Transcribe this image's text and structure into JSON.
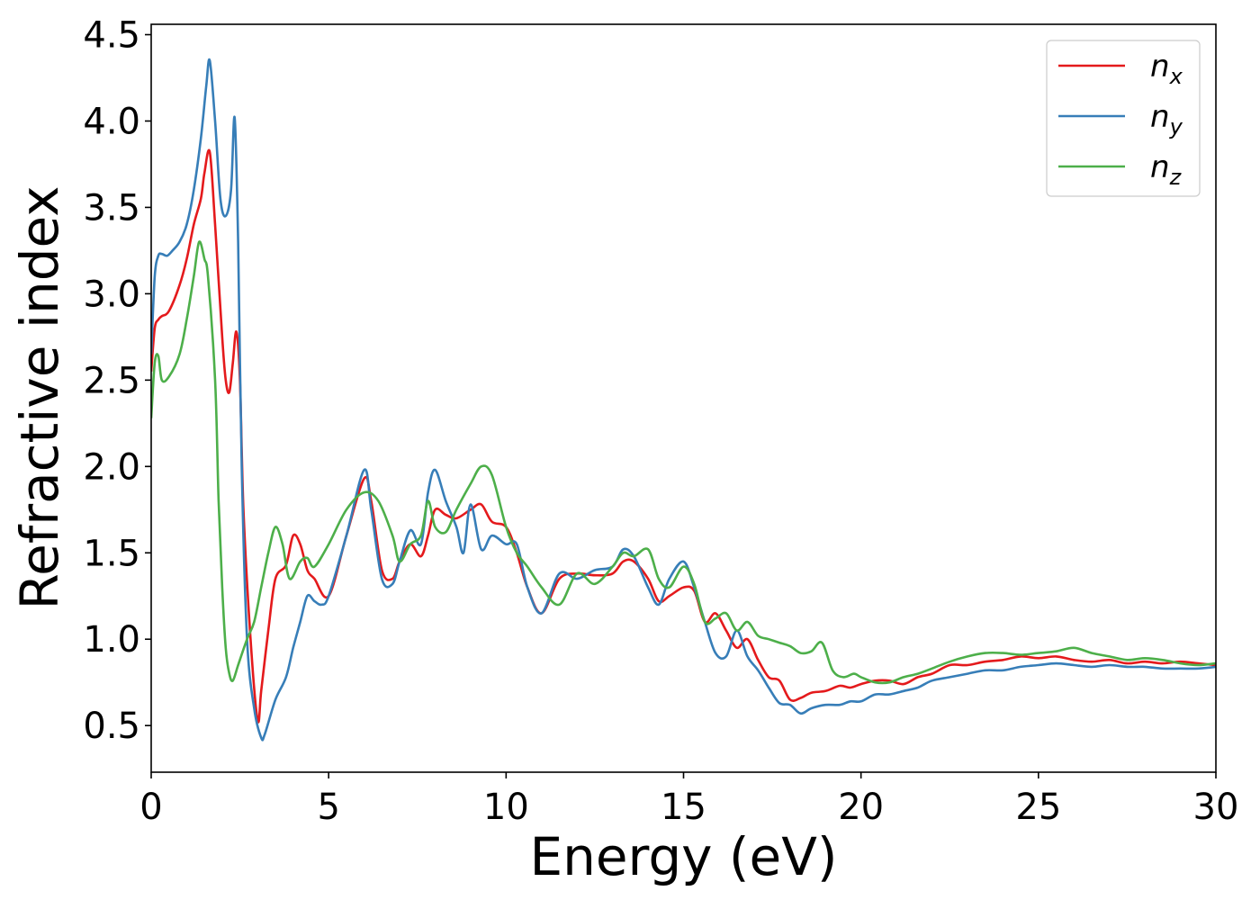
{
  "chart_data": {
    "type": "line",
    "title": "",
    "xlabel": "Energy (eV)",
    "ylabel": "Refractive index",
    "xlim": [
      0,
      30
    ],
    "ylim": [
      0.23,
      4.56
    ],
    "xticks": [
      0,
      5,
      10,
      15,
      20,
      25,
      30
    ],
    "xtick_labels": [
      "0",
      "5",
      "10",
      "15",
      "20",
      "25",
      "30"
    ],
    "yticks": [
      0.5,
      1.0,
      1.5,
      2.0,
      2.5,
      3.0,
      3.5,
      4.0,
      4.5
    ],
    "ytick_labels": [
      "0.5",
      "1.0",
      "1.5",
      "2.0",
      "2.5",
      "3.0",
      "3.5",
      "4.0",
      "4.5"
    ],
    "grid": false,
    "legend_position": "top-right",
    "series": [
      {
        "name": "n",
        "subscript": "x",
        "color": "#e41a1c",
        "x": [
          0,
          0.1,
          0.2,
          0.3,
          0.5,
          0.8,
          1.0,
          1.2,
          1.4,
          1.5,
          1.65,
          1.8,
          2.0,
          2.1,
          2.2,
          2.3,
          2.4,
          2.5,
          2.6,
          2.8,
          3.0,
          3.1,
          3.3,
          3.5,
          3.8,
          4.0,
          4.2,
          4.4,
          4.6,
          5.0,
          5.5,
          6.0,
          6.2,
          6.5,
          6.8,
          7.0,
          7.3,
          7.6,
          7.8,
          8.0,
          8.3,
          8.6,
          9.0,
          9.3,
          9.6,
          10.0,
          10.3,
          10.6,
          11.0,
          11.5,
          12.0,
          12.5,
          13.0,
          13.3,
          13.6,
          14.0,
          14.3,
          14.6,
          15.0,
          15.3,
          15.6,
          15.9,
          16.2,
          16.5,
          16.8,
          17.1,
          17.4,
          17.7,
          18.0,
          18.3,
          18.6,
          19.0,
          19.4,
          19.7,
          20.0,
          20.4,
          20.8,
          21.2,
          21.6,
          22.0,
          22.5,
          23.0,
          23.5,
          24.0,
          24.5,
          25.0,
          25.5,
          26.0,
          26.5,
          27.0,
          27.5,
          28.0,
          28.5,
          29.0,
          29.5,
          30.0
        ],
        "y": [
          2.55,
          2.8,
          2.85,
          2.87,
          2.9,
          3.05,
          3.2,
          3.4,
          3.55,
          3.7,
          3.82,
          3.4,
          2.75,
          2.5,
          2.43,
          2.6,
          2.78,
          2.5,
          1.75,
          1.0,
          0.53,
          0.7,
          1.05,
          1.35,
          1.43,
          1.6,
          1.55,
          1.4,
          1.35,
          1.25,
          1.6,
          1.93,
          1.8,
          1.4,
          1.35,
          1.45,
          1.55,
          1.48,
          1.6,
          1.75,
          1.72,
          1.7,
          1.75,
          1.78,
          1.68,
          1.65,
          1.5,
          1.3,
          1.15,
          1.35,
          1.38,
          1.37,
          1.38,
          1.45,
          1.45,
          1.35,
          1.22,
          1.25,
          1.3,
          1.28,
          1.1,
          1.15,
          1.05,
          0.95,
          1.0,
          0.88,
          0.78,
          0.76,
          0.65,
          0.66,
          0.69,
          0.7,
          0.73,
          0.72,
          0.74,
          0.76,
          0.76,
          0.74,
          0.78,
          0.8,
          0.85,
          0.85,
          0.87,
          0.88,
          0.9,
          0.89,
          0.9,
          0.88,
          0.87,
          0.88,
          0.86,
          0.87,
          0.86,
          0.87,
          0.86,
          0.85
        ]
      },
      {
        "name": "n",
        "subscript": "y",
        "color": "#377eb8",
        "x": [
          0,
          0.1,
          0.2,
          0.3,
          0.45,
          0.6,
          0.8,
          1.0,
          1.2,
          1.4,
          1.55,
          1.65,
          1.8,
          1.95,
          2.1,
          2.25,
          2.35,
          2.45,
          2.55,
          2.7,
          2.9,
          3.1,
          3.2,
          3.5,
          3.8,
          4.0,
          4.2,
          4.4,
          4.6,
          4.8,
          5.0,
          5.5,
          6.0,
          6.2,
          6.5,
          6.8,
          7.0,
          7.3,
          7.6,
          7.8,
          8.0,
          8.3,
          8.6,
          8.8,
          9.0,
          9.3,
          9.6,
          10.0,
          10.3,
          10.6,
          11.0,
          11.5,
          12.0,
          12.5,
          13.0,
          13.3,
          13.6,
          14.0,
          14.3,
          14.6,
          15.0,
          15.3,
          15.6,
          15.9,
          16.2,
          16.5,
          16.8,
          17.1,
          17.4,
          17.7,
          18.0,
          18.3,
          18.6,
          19.0,
          19.4,
          19.7,
          20.0,
          20.4,
          20.8,
          21.2,
          21.6,
          22.0,
          22.5,
          23.0,
          23.5,
          24.0,
          24.5,
          25.0,
          25.5,
          26.0,
          26.5,
          27.0,
          27.5,
          28.0,
          28.5,
          29.0,
          29.5,
          30.0
        ],
        "y": [
          2.65,
          3.1,
          3.22,
          3.23,
          3.22,
          3.25,
          3.3,
          3.4,
          3.6,
          3.9,
          4.2,
          4.35,
          4.0,
          3.55,
          3.45,
          3.6,
          4.02,
          3.3,
          2.0,
          1.0,
          0.6,
          0.43,
          0.45,
          0.65,
          0.78,
          0.95,
          1.1,
          1.25,
          1.22,
          1.2,
          1.25,
          1.6,
          1.98,
          1.75,
          1.35,
          1.32,
          1.45,
          1.63,
          1.55,
          1.85,
          1.98,
          1.8,
          1.65,
          1.5,
          1.78,
          1.52,
          1.6,
          1.55,
          1.55,
          1.3,
          1.15,
          1.38,
          1.35,
          1.4,
          1.42,
          1.52,
          1.48,
          1.3,
          1.2,
          1.35,
          1.45,
          1.3,
          1.1,
          0.92,
          0.9,
          1.05,
          0.9,
          0.82,
          0.72,
          0.63,
          0.62,
          0.57,
          0.6,
          0.62,
          0.62,
          0.64,
          0.64,
          0.68,
          0.68,
          0.7,
          0.72,
          0.76,
          0.78,
          0.8,
          0.82,
          0.82,
          0.84,
          0.85,
          0.86,
          0.85,
          0.84,
          0.85,
          0.84,
          0.84,
          0.83,
          0.83,
          0.83,
          0.84
        ]
      },
      {
        "name": "n",
        "subscript": "z",
        "color": "#4daf4a",
        "x": [
          0,
          0.1,
          0.2,
          0.3,
          0.5,
          0.8,
          1.0,
          1.2,
          1.35,
          1.5,
          1.6,
          1.8,
          1.9,
          2.0,
          2.1,
          2.2,
          2.3,
          2.45,
          2.7,
          2.9,
          3.1,
          3.3,
          3.5,
          3.7,
          3.9,
          4.2,
          4.4,
          4.6,
          5.0,
          5.5,
          6.0,
          6.4,
          6.8,
          7.0,
          7.3,
          7.6,
          7.8,
          8.0,
          8.3,
          8.6,
          9.0,
          9.3,
          9.6,
          10.0,
          10.3,
          10.6,
          11.0,
          11.5,
          12.0,
          12.5,
          13.0,
          13.3,
          13.6,
          14.0,
          14.3,
          14.6,
          15.0,
          15.3,
          15.6,
          15.9,
          16.2,
          16.5,
          16.8,
          17.1,
          17.4,
          17.7,
          18.0,
          18.3,
          18.6,
          18.9,
          19.2,
          19.5,
          19.8,
          20.0,
          20.4,
          20.8,
          21.2,
          21.6,
          22.0,
          22.5,
          23.0,
          23.5,
          24.0,
          24.5,
          25.0,
          25.5,
          26.0,
          26.5,
          27.0,
          27.5,
          28.0,
          28.5,
          29.0,
          29.5,
          30.0
        ],
        "y": [
          2.28,
          2.6,
          2.64,
          2.5,
          2.52,
          2.65,
          2.85,
          3.1,
          3.3,
          3.2,
          3.1,
          2.5,
          1.8,
          1.3,
          0.95,
          0.8,
          0.76,
          0.85,
          1.0,
          1.1,
          1.3,
          1.5,
          1.65,
          1.55,
          1.35,
          1.45,
          1.47,
          1.42,
          1.55,
          1.75,
          1.85,
          1.8,
          1.6,
          1.45,
          1.55,
          1.6,
          1.8,
          1.65,
          1.62,
          1.75,
          1.9,
          2.0,
          1.95,
          1.65,
          1.5,
          1.42,
          1.3,
          1.2,
          1.38,
          1.32,
          1.42,
          1.5,
          1.48,
          1.52,
          1.35,
          1.3,
          1.42,
          1.32,
          1.1,
          1.12,
          1.15,
          1.05,
          1.1,
          1.02,
          1.0,
          0.98,
          0.96,
          0.92,
          0.93,
          0.98,
          0.82,
          0.78,
          0.8,
          0.78,
          0.75,
          0.75,
          0.78,
          0.8,
          0.83,
          0.87,
          0.9,
          0.92,
          0.92,
          0.91,
          0.92,
          0.93,
          0.95,
          0.92,
          0.9,
          0.88,
          0.89,
          0.88,
          0.86,
          0.85,
          0.86
        ]
      }
    ]
  }
}
